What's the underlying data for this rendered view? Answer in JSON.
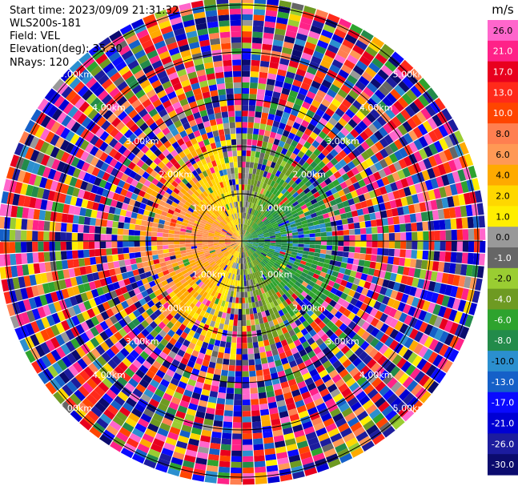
{
  "info": {
    "start_time": "Start time: 2023/09/09 21:31:32",
    "instrument": "WLS200s-181",
    "field": "Field: VEL",
    "elevation": "Elevation(deg): 35.30",
    "nrays": "NRays: 120"
  },
  "chart_data": {
    "type": "heatmap",
    "projection": "polar PPI",
    "field": "VEL",
    "units": "m/s",
    "nrays": 120,
    "range_rings_km": [
      1,
      2,
      3,
      4,
      5
    ],
    "range_labels": [
      [
        "1.00km",
        "1.00km",
        "1.00km",
        "1.00km"
      ],
      [
        "2.00km",
        "2.00km",
        "2.00km",
        "2.00km"
      ],
      [
        "3.00km",
        "3.00km",
        "3.00km",
        "3.00km"
      ],
      [
        "4.00km",
        "4.00km",
        "4.00km",
        "4.00km"
      ],
      [
        "5.00km",
        "5.00km",
        "5.00km",
        "5.00km"
      ]
    ],
    "colorbar": {
      "unit": "m/s",
      "ticks": [
        "26.0",
        "21.0",
        "17.0",
        "13.0",
        "10.0",
        "8.0",
        "6.0",
        "4.0",
        "2.0",
        "1.0",
        "0.0",
        "-1.0",
        "-2.0",
        "-4.0",
        "-6.0",
        "-8.0",
        "-10.0",
        "-13.0",
        "-17.0",
        "-21.0",
        "-26.0",
        "-30.0"
      ],
      "bounds": [
        -30,
        -26,
        -21,
        -17,
        -13,
        -10,
        -8,
        -6,
        -4,
        -2,
        -1,
        0,
        1,
        2,
        4,
        6,
        8,
        10,
        13,
        17,
        21,
        26,
        30
      ],
      "colors": [
        "#0b0b6e",
        "#1c1c9e",
        "#0000d4",
        "#0a0aff",
        "#1560c8",
        "#2b8fcf",
        "#238b4a",
        "#2ea32e",
        "#6e9a22",
        "#9acd32",
        "#666666",
        "#999999",
        "#ffee00",
        "#ffd700",
        "#ffaa00",
        "#ff9955",
        "#ff7f50",
        "#ff4500",
        "#ff2a1a",
        "#e8001e",
        "#ff2288",
        "#ff66cc"
      ]
    }
  }
}
